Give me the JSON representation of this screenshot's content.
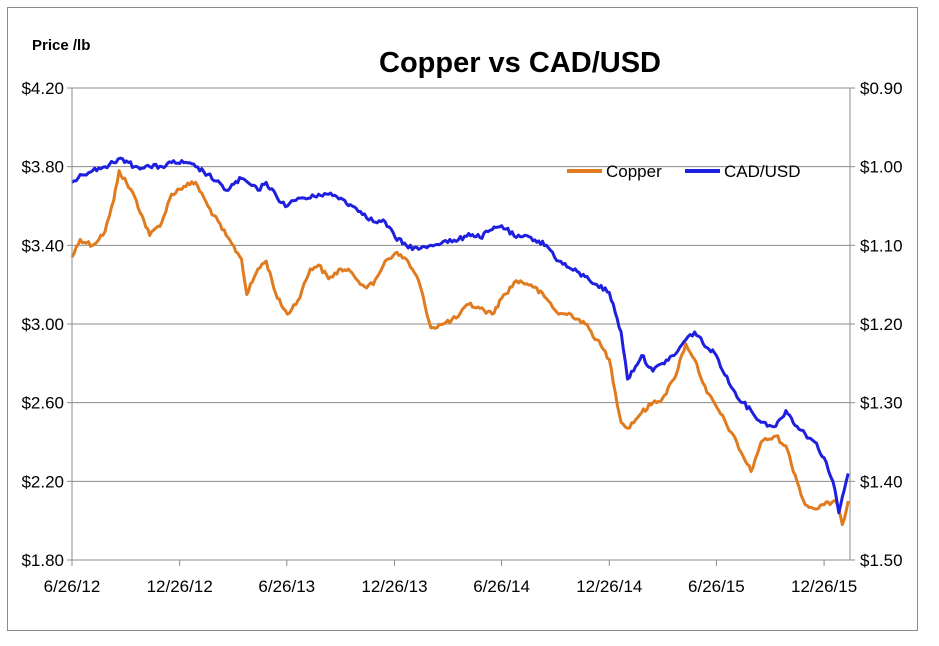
{
  "chart_data": {
    "type": "line",
    "title": "Copper vs CAD/USD",
    "ylabel_left": "Price /lb",
    "x_tick_labels": [
      "6/26/12",
      "12/26/12",
      "6/26/13",
      "12/26/13",
      "6/26/14",
      "12/26/14",
      "6/26/15",
      "12/26/15"
    ],
    "y_left": {
      "min": 1.8,
      "max": 4.2,
      "step": 0.4,
      "tick_labels": [
        "$1.80",
        "$2.20",
        "$2.60",
        "$3.00",
        "$3.40",
        "$3.80",
        "$4.20"
      ]
    },
    "y_right": {
      "min": 0.9,
      "max": 1.5,
      "inverted": true,
      "tick_labels": [
        "$0.90",
        "$1.00",
        "$1.10",
        "$1.20",
        "$1.30",
        "$1.40",
        "$1.50"
      ]
    },
    "grid": "horizontal",
    "legend_position": "top-right",
    "series": [
      {
        "name": "Copper",
        "axis": "left",
        "color": "#E07B20",
        "x": [
          "2012-06-26",
          "2012-07-10",
          "2012-07-31",
          "2012-08-21",
          "2012-09-05",
          "2012-09-14",
          "2012-10-10",
          "2012-11-05",
          "2012-11-26",
          "2012-12-12",
          "2013-01-02",
          "2013-01-22",
          "2013-02-12",
          "2013-03-15",
          "2013-04-10",
          "2013-04-19",
          "2013-05-08",
          "2013-05-22",
          "2013-06-10",
          "2013-06-27",
          "2013-07-15",
          "2013-08-05",
          "2013-08-19",
          "2013-09-05",
          "2013-09-26",
          "2013-10-15",
          "2013-11-05",
          "2013-11-20",
          "2013-12-10",
          "2013-12-27",
          "2014-01-15",
          "2014-02-05",
          "2014-02-26",
          "2014-03-19",
          "2014-04-10",
          "2014-05-01",
          "2014-05-20",
          "2014-06-10",
          "2014-06-26",
          "2014-07-21",
          "2014-08-15",
          "2014-09-10",
          "2014-10-01",
          "2014-10-22",
          "2014-11-15",
          "2014-12-05",
          "2014-12-26",
          "2015-01-15",
          "2015-01-26",
          "2015-02-19",
          "2015-03-10",
          "2015-03-26",
          "2015-04-15",
          "2015-05-05",
          "2015-05-20",
          "2015-06-10",
          "2015-06-26",
          "2015-07-21",
          "2015-08-10",
          "2015-08-24",
          "2015-09-10",
          "2015-10-05",
          "2015-10-22",
          "2015-11-10",
          "2015-11-24",
          "2015-12-10",
          "2015-12-26",
          "2016-01-15",
          "2016-01-26",
          "2016-02-05"
        ],
        "values": [
          3.34,
          3.43,
          3.4,
          3.47,
          3.63,
          3.78,
          3.65,
          3.45,
          3.52,
          3.66,
          3.7,
          3.72,
          3.6,
          3.45,
          3.33,
          3.15,
          3.28,
          3.32,
          3.13,
          3.05,
          3.12,
          3.28,
          3.3,
          3.23,
          3.28,
          3.26,
          3.19,
          3.2,
          3.32,
          3.36,
          3.33,
          3.22,
          2.98,
          3.0,
          3.03,
          3.1,
          3.08,
          3.05,
          3.13,
          3.22,
          3.2,
          3.13,
          3.05,
          3.05,
          3.0,
          2.92,
          2.82,
          2.5,
          2.47,
          2.55,
          2.6,
          2.62,
          2.72,
          2.9,
          2.82,
          2.65,
          2.58,
          2.45,
          2.33,
          2.25,
          2.4,
          2.43,
          2.38,
          2.2,
          2.08,
          2.06,
          2.08,
          2.1,
          1.98,
          2.1
        ]
      },
      {
        "name": "CAD/USD",
        "axis": "right",
        "color": "#1F1FE0",
        "x": [
          "2012-06-26",
          "2012-07-10",
          "2012-07-31",
          "2012-08-21",
          "2012-09-05",
          "2012-09-20",
          "2012-10-10",
          "2012-11-05",
          "2012-11-26",
          "2012-12-12",
          "2013-01-02",
          "2013-01-22",
          "2013-02-12",
          "2013-03-15",
          "2013-04-10",
          "2013-05-08",
          "2013-05-22",
          "2013-06-10",
          "2013-06-27",
          "2013-07-15",
          "2013-08-05",
          "2013-08-19",
          "2013-09-05",
          "2013-09-26",
          "2013-10-15",
          "2013-11-05",
          "2013-11-20",
          "2013-12-10",
          "2013-12-27",
          "2014-01-15",
          "2014-02-05",
          "2014-02-26",
          "2014-03-19",
          "2014-04-10",
          "2014-05-01",
          "2014-05-20",
          "2014-06-10",
          "2014-06-26",
          "2014-07-21",
          "2014-08-15",
          "2014-09-10",
          "2014-10-01",
          "2014-10-22",
          "2014-11-15",
          "2014-12-05",
          "2014-12-26",
          "2015-01-15",
          "2015-01-26",
          "2015-02-19",
          "2015-03-10",
          "2015-03-26",
          "2015-04-15",
          "2015-05-05",
          "2015-05-20",
          "2015-06-10",
          "2015-06-26",
          "2015-07-21",
          "2015-08-10",
          "2015-08-24",
          "2015-09-10",
          "2015-10-05",
          "2015-10-22",
          "2015-11-10",
          "2015-11-24",
          "2015-12-10",
          "2015-12-26",
          "2016-01-10",
          "2016-01-20",
          "2016-01-26",
          "2016-02-05"
        ],
        "values": [
          1.02,
          1.01,
          1.005,
          1.0,
          0.995,
          0.99,
          1.0,
          1.0,
          1.0,
          0.995,
          0.995,
          1.0,
          1.01,
          1.03,
          1.015,
          1.03,
          1.02,
          1.04,
          1.05,
          1.04,
          1.04,
          1.035,
          1.035,
          1.04,
          1.05,
          1.06,
          1.07,
          1.07,
          1.09,
          1.1,
          1.105,
          1.1,
          1.095,
          1.095,
          1.085,
          1.09,
          1.08,
          1.075,
          1.09,
          1.09,
          1.1,
          1.12,
          1.13,
          1.14,
          1.15,
          1.16,
          1.21,
          1.27,
          1.24,
          1.26,
          1.25,
          1.24,
          1.22,
          1.21,
          1.23,
          1.24,
          1.28,
          1.3,
          1.31,
          1.325,
          1.33,
          1.31,
          1.33,
          1.34,
          1.35,
          1.37,
          1.4,
          1.44,
          1.42,
          1.39
        ]
      }
    ]
  }
}
